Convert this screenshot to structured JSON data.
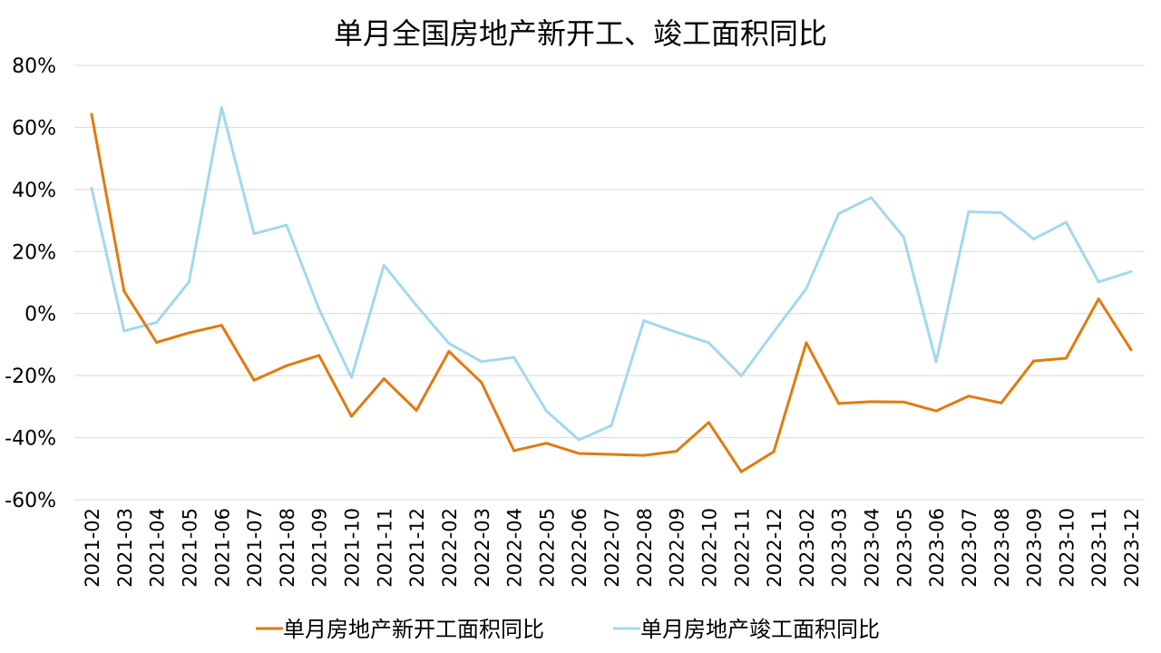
{
  "chart_data": {
    "type": "line",
    "title": "单月全国房地产新开工、竣工面积同比",
    "xlabel": "",
    "ylabel": "",
    "ylim": [
      -60,
      80
    ],
    "yticks": [
      -60,
      -40,
      -20,
      0,
      20,
      40,
      60,
      80
    ],
    "ytick_labels": [
      "-60%",
      "-40%",
      "-20%",
      "0%",
      "20%",
      "40%",
      "60%",
      "80%"
    ],
    "grid": true,
    "legend_position": "bottom",
    "categories": [
      "2021-02",
      "2021-03",
      "2021-04",
      "2021-05",
      "2021-06",
      "2021-07",
      "2021-08",
      "2021-09",
      "2021-10",
      "2021-11",
      "2021-12",
      "2022-02",
      "2022-03",
      "2022-04",
      "2022-05",
      "2022-06",
      "2022-07",
      "2022-08",
      "2022-09",
      "2022-10",
      "2022-11",
      "2022-12",
      "2023-02",
      "2023-03",
      "2023-04",
      "2023-05",
      "2023-06",
      "2023-07",
      "2023-08",
      "2023-09",
      "2023-10",
      "2023-11",
      "2023-12"
    ],
    "series": [
      {
        "name": "单月房地产新开工面积同比",
        "color": "#e07b10",
        "values": [
          64.2,
          7.2,
          -9.3,
          -6.2,
          -3.8,
          -21.5,
          -16.8,
          -13.5,
          -33.1,
          -21.0,
          -31.2,
          -12.2,
          -22.2,
          -44.2,
          -41.8,
          -45.1,
          -45.4,
          -45.7,
          -44.4,
          -35.1,
          -51.0,
          -44.5,
          -9.4,
          -29.0,
          -28.4,
          -28.5,
          -31.4,
          -26.6,
          -28.8,
          -15.3,
          -14.4,
          4.7,
          -11.7
        ]
      },
      {
        "name": "单月房地产竣工面积同比",
        "color": "#a3d8ee",
        "values": [
          40.4,
          -5.6,
          -2.9,
          10.2,
          66.4,
          25.7,
          28.5,
          1.5,
          -20.6,
          15.6,
          2.6,
          -9.6,
          -15.5,
          -14.1,
          -31.4,
          -40.7,
          -36.1,
          -2.3,
          -6.0,
          -9.4,
          -20.1,
          -5.9,
          8.0,
          32.2,
          37.4,
          24.6,
          -15.6,
          32.8,
          32.5,
          24.0,
          29.4,
          10.2,
          13.5
        ]
      }
    ]
  }
}
